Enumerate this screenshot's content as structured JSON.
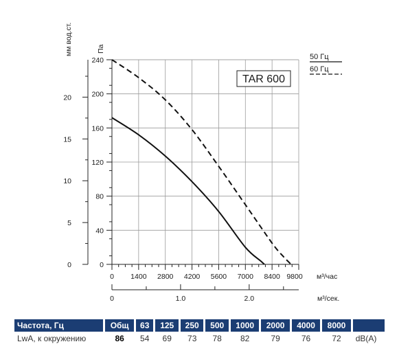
{
  "chart_data": {
    "type": "line",
    "model_label": "TAR 600",
    "left_axis_label": "мм вод.ст.",
    "pa_axis_label": "Па",
    "x_axis_label": "м³/час",
    "x2_axis_label": "м³/сек.",
    "y_pa_ticks": [
      "0",
      "40",
      "80",
      "120",
      "160",
      "200",
      "240"
    ],
    "y_mm_ticks": [
      "0",
      "5",
      "10",
      "15",
      "20"
    ],
    "x_ticks": [
      "0",
      "1400",
      "2800",
      "4200",
      "5600",
      "7000",
      "8400",
      "9800"
    ],
    "x2_ticks": [
      "0",
      "1.0",
      "2.0"
    ],
    "xlim": [
      0,
      9800
    ],
    "ylim": [
      0,
      240
    ],
    "grid": true,
    "legend": [
      "50 Гц",
      "60 Гц"
    ],
    "series": [
      {
        "name": "50 Гц",
        "style": "solid",
        "x": [
          0,
          1400,
          2800,
          4200,
          5600,
          7000,
          7800,
          8000
        ],
        "y": [
          172,
          152,
          127,
          97,
          62,
          20,
          4,
          0
        ]
      },
      {
        "name": "60 Гц",
        "style": "dashed",
        "x": [
          0,
          1400,
          2800,
          4200,
          5600,
          7000,
          8400,
          9000,
          9400
        ],
        "y": [
          240,
          219,
          193,
          158,
          115,
          70,
          25,
          9,
          0
        ]
      }
    ]
  },
  "noise_table": {
    "header_label": "Частота, Гц",
    "columns": [
      "Общ",
      "63",
      "125",
      "250",
      "500",
      "1000",
      "2000",
      "4000",
      "8000"
    ],
    "row_label": "LwA, к окружению",
    "values": [
      "86",
      "54",
      "69",
      "73",
      "78",
      "82",
      "79",
      "76",
      "72"
    ],
    "unit": "dB(A)"
  }
}
